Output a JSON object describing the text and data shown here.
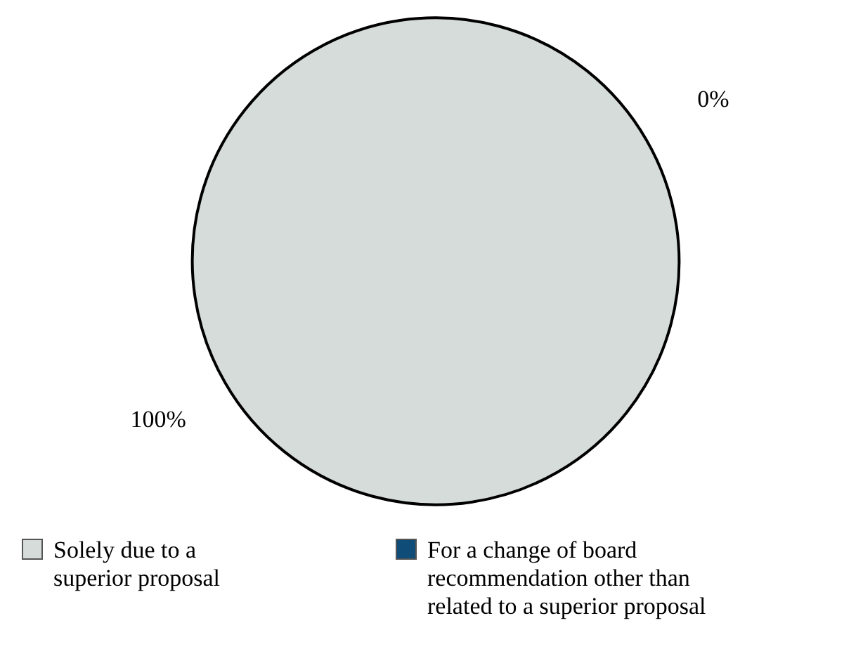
{
  "chart_data": {
    "type": "pie",
    "categories": [
      "Solely due to a superior proposal",
      "For a change of board recommendation other than related to a superior proposal"
    ],
    "values": [
      100,
      0
    ],
    "colors": [
      "#d5dcda",
      "#0f4c78"
    ],
    "value_labels": [
      "100%",
      "0%"
    ],
    "legend": "bottom"
  }
}
